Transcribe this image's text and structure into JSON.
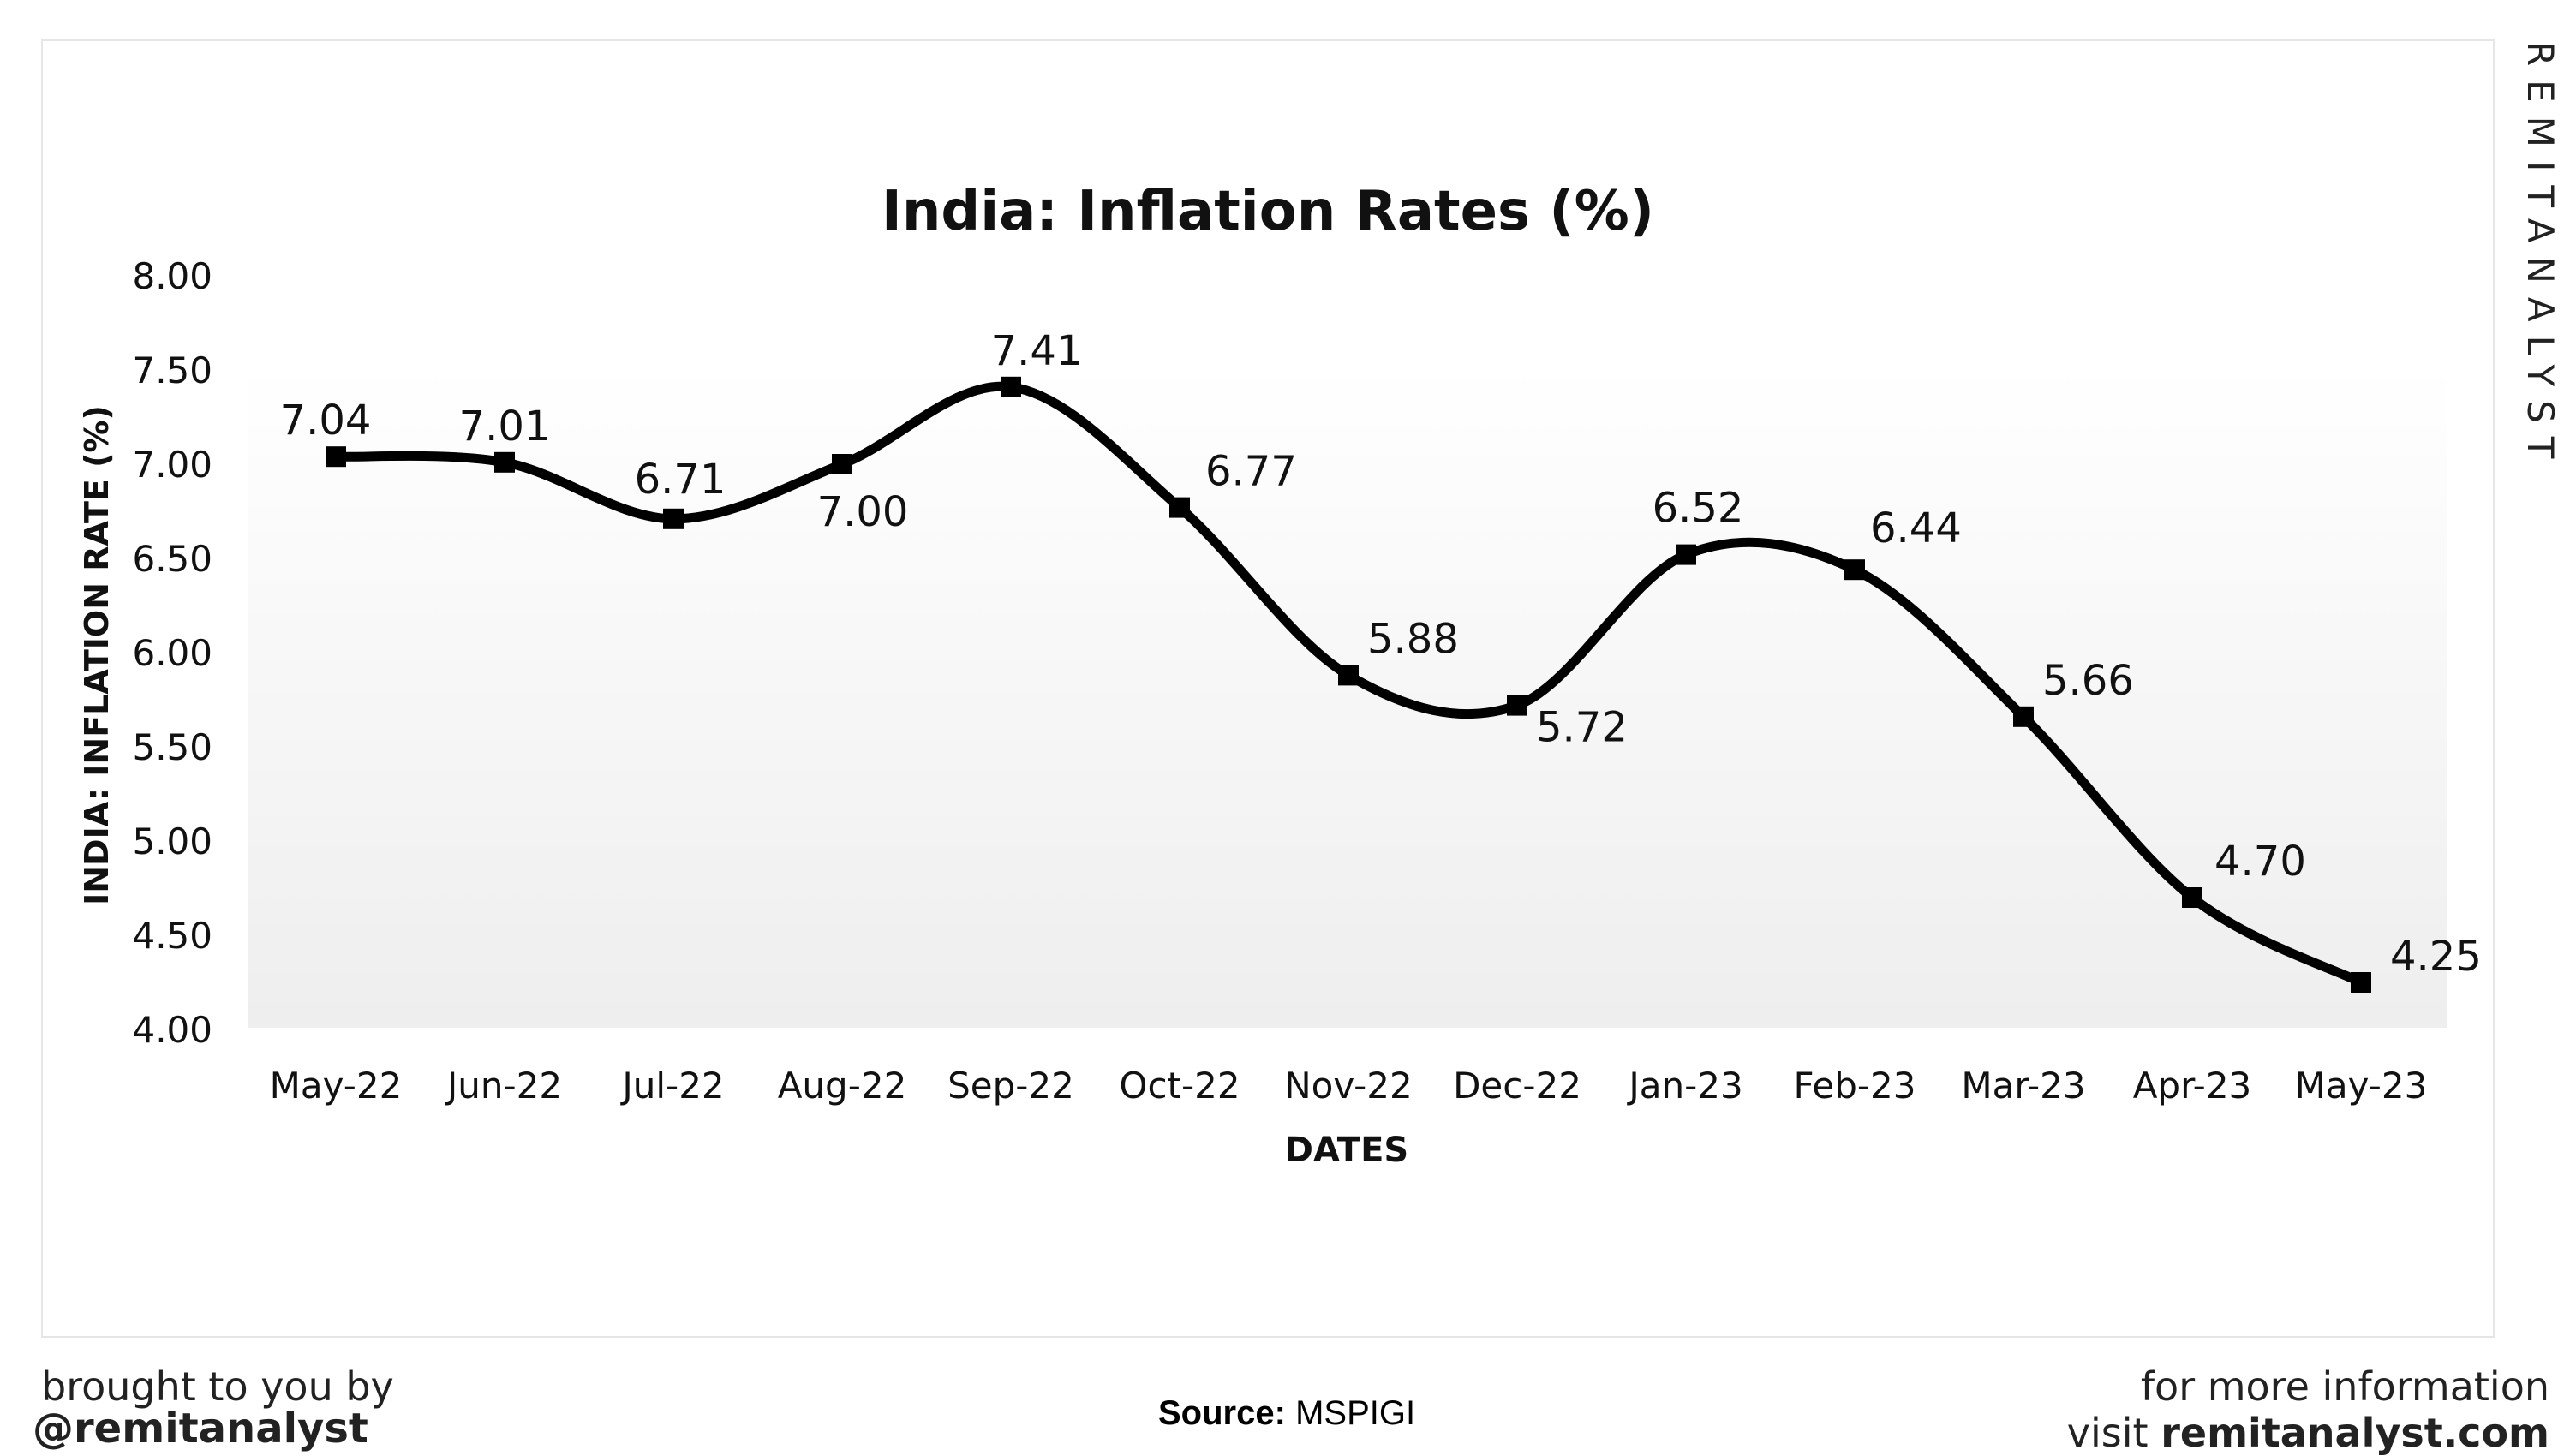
{
  "chart_data": {
    "type": "line",
    "title": "India: Inflation Rates (%)",
    "xlabel": "DATES",
    "ylabel": "INDIA: INFLATION RATE (%)",
    "categories": [
      "May-22",
      "Jun-22",
      "Jul-22",
      "Aug-22",
      "Sep-22",
      "Oct-22",
      "Nov-22",
      "Dec-22",
      "Jan-23",
      "Feb-23",
      "Mar-23",
      "Apr-23",
      "May-23"
    ],
    "series": [
      {
        "values": [
          7.04,
          7.01,
          6.71,
          7.0,
          7.41,
          6.77,
          5.88,
          5.72,
          6.52,
          6.44,
          5.66,
          4.7,
          4.25
        ]
      }
    ],
    "data_labels": [
      "7.04",
      "7.01",
      "6.71",
      "7.00",
      "7.41",
      "6.77",
      "5.88",
      "5.72",
      "6.52",
      "6.44",
      "5.66",
      "4.70",
      "4.25"
    ],
    "ylim": [
      4.0,
      8.0
    ],
    "yticks": [
      "4.00",
      "4.50",
      "5.00",
      "5.50",
      "6.00",
      "6.50",
      "7.00",
      "7.50",
      "8.00"
    ],
    "grid": false,
    "line_color": "#000000",
    "plot_background": "#f2f2f2"
  },
  "watermark": "REMITANALYST",
  "footer": {
    "brought_by": "brought to you by",
    "handle": "@remitanalyst",
    "source_label": "Source:",
    "source_value": "MSPIGI",
    "more_info": "for more information",
    "visit_prefix": "visit",
    "site": "remitanalyst.com"
  }
}
